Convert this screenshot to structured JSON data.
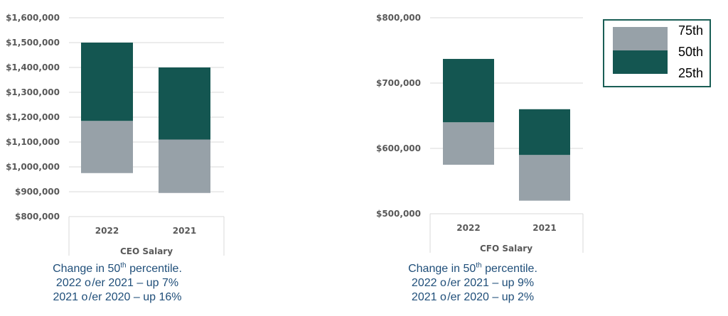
{
  "colors": {
    "upper": "#97a1a8",
    "lower": "#145651",
    "grid": "#d9d9d9",
    "note_text": "#1f4e79",
    "legend_border": "#1a5e55"
  },
  "legend": {
    "items": [
      "75th",
      "50th",
      "25th"
    ]
  },
  "chart_data": [
    {
      "type": "bar",
      "title": "CEO Salary",
      "categories": [
        "2022",
        "2021"
      ],
      "series": [
        {
          "values": [
            [
              975000,
              1185000
            ],
            [
              895000,
              1110000
            ]
          ]
        },
        {
          "values": [
            [
              1185000,
              1500000
            ],
            [
              1110000,
              1400000
            ]
          ]
        }
      ],
      "ylim": [
        800000,
        1600000
      ],
      "yticks": [
        800000,
        900000,
        1000000,
        1100000,
        1200000,
        1300000,
        1400000,
        1500000,
        1600000
      ],
      "ytick_labels": [
        "$800,000",
        "$900,000",
        "$1,000,000",
        "$1,100,000",
        "$1,200,000",
        "$1,300,000",
        "$1,400,000",
        "$1,500,000",
        "$1,600,000"
      ],
      "grid": true
    },
    {
      "type": "bar",
      "title": "CFO Salary",
      "categories": [
        "2022",
        "2021"
      ],
      "series": [
        {
          "values": [
            [
              575000,
              640000
            ],
            [
              520000,
              590000
            ]
          ]
        },
        {
          "values": [
            [
              640000,
              737000
            ],
            [
              590000,
              660000
            ]
          ]
        }
      ],
      "ylim": [
        500000,
        800000
      ],
      "yticks": [
        500000,
        600000,
        700000,
        800000
      ],
      "ytick_labels": [
        "$500,000",
        "$600,000",
        "$700,000",
        "$800,000"
      ],
      "grid": true
    }
  ],
  "notes": [
    {
      "prefix": "Change in 50",
      "sup": "th",
      "suffix": " percentile.",
      "line2": "2022 o /er 2021 – up 7%",
      "line3": "2021 o /er 2020 – up 16%"
    },
    {
      "prefix": "Change in 50",
      "sup": "th",
      "suffix": " percentile.",
      "line2": "2022 o /er 2021 – up 9%",
      "line3": "2021 o /er 2020 – up 2%"
    }
  ]
}
